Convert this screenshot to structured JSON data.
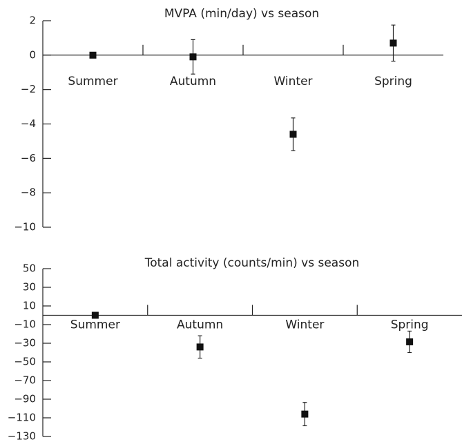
{
  "chart_data": [
    {
      "type": "errorbar",
      "title": "MVPA (min/day) vs season",
      "categories": [
        "Summer",
        "Autumn",
        "Winter",
        "Spring"
      ],
      "values": [
        0,
        -0.1,
        -4.6,
        0.7
      ],
      "errors": [
        0,
        1,
        0.95,
        1.05
      ],
      "color": "#111111",
      "ylim": [
        -10,
        2
      ],
      "yticks": [
        2,
        0,
        {
          "value": -2,
          "label": "−2"
        },
        {
          "value": -4,
          "label": "−4"
        },
        {
          "value": -6,
          "label": "−6"
        },
        {
          "value": -8,
          "label": "−8"
        },
        {
          "value": -10,
          "label": "−10"
        }
      ]
    },
    {
      "type": "errorbar",
      "title": "Total activity (counts/min) vs season",
      "categories": [
        "Summer",
        "Autumn",
        "Winter",
        "Spring"
      ],
      "values": [
        0,
        -34,
        -106,
        -28.5
      ],
      "errors": [
        0,
        12,
        12.5,
        11.5
      ],
      "color": "#111111",
      "ylim": [
        -130,
        50
      ],
      "yticks": [
        50,
        30,
        10,
        {
          "value": -10,
          "label": "−10"
        },
        {
          "value": -30,
          "label": "−30"
        },
        {
          "value": -50,
          "label": "−50"
        },
        {
          "value": -70,
          "label": "−70"
        },
        {
          "value": -90,
          "label": "−90"
        },
        {
          "value": -110,
          "label": "−110"
        },
        {
          "value": -130,
          "label": "−130"
        }
      ]
    }
  ]
}
